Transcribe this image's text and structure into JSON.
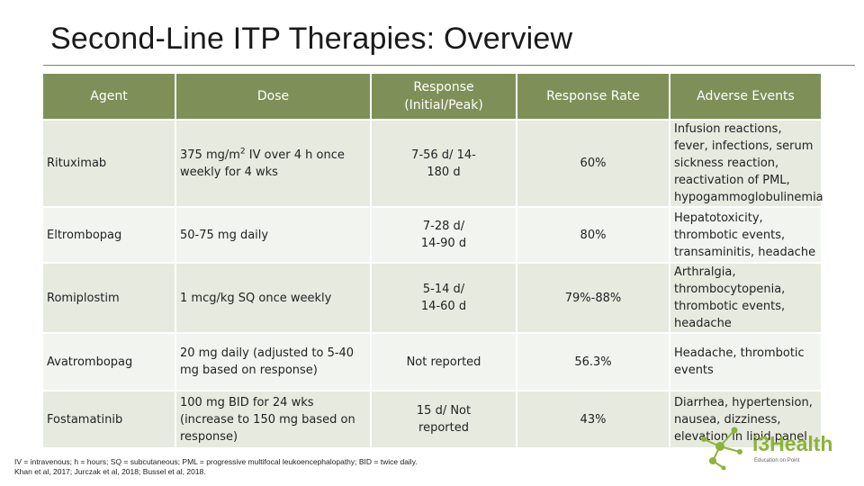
{
  "title": "Second-Line ITP Therapies: Overview",
  "table": {
    "headers": [
      "Agent",
      "Dose",
      "Response (Initial/Peak)",
      "Response Rate",
      "Adverse Events"
    ],
    "rows": [
      {
        "agent": "Rituximab",
        "dose_pre": "375 mg/m",
        "dose_sup": "2",
        "dose_post": " IV over 4 h once weekly for 4 wks",
        "response": "7-56 d/ 14-180 d",
        "rate": "60%",
        "adverse": "Infusion reactions, fever, infections, serum sickness reaction, reactivation of PML, hypogammoglobulinemia"
      },
      {
        "agent": "Eltrombopag",
        "dose": "50-75 mg daily",
        "response": "7-28 d/ 14-90 d",
        "rate": "80%",
        "adverse": "Hepatotoxicity, thrombotic events, transaminitis, headache"
      },
      {
        "agent": "Romiplostim",
        "dose": "1 mcg/kg SQ once weekly",
        "response": "5-14 d/ 14-60 d",
        "rate": "79%-88%",
        "adverse": "Arthralgia, thrombocytopenia, thrombotic events, headache"
      },
      {
        "agent": "Avatrombopag",
        "dose": "20 mg daily (adjusted to 5-40 mg based on response)",
        "response": "Not reported",
        "rate": "56.3%",
        "adverse": "Headache, thrombotic events"
      },
      {
        "agent": "Fostamatinib",
        "dose": "100 mg BID for 24 wks (increase to 150 mg based on response)",
        "response": "15 d/ Not reported",
        "rate": "43%",
        "adverse": "Diarrhea, hypertension, nausea, dizziness, elevation in lipid panel"
      }
    ]
  },
  "footnote": {
    "line1": "IV = intravenous; h = hours; SQ = subcutaneous; PML = progressive multifocal leukoencephalopathy; BID = twice daily.",
    "line2": "Khan et al, 2017; Jurczak et al, 2018; Bussel et al, 2018."
  },
  "logo": {
    "brand": "i3Health",
    "tagline": "Education on Point",
    "color": "#8db33a"
  }
}
